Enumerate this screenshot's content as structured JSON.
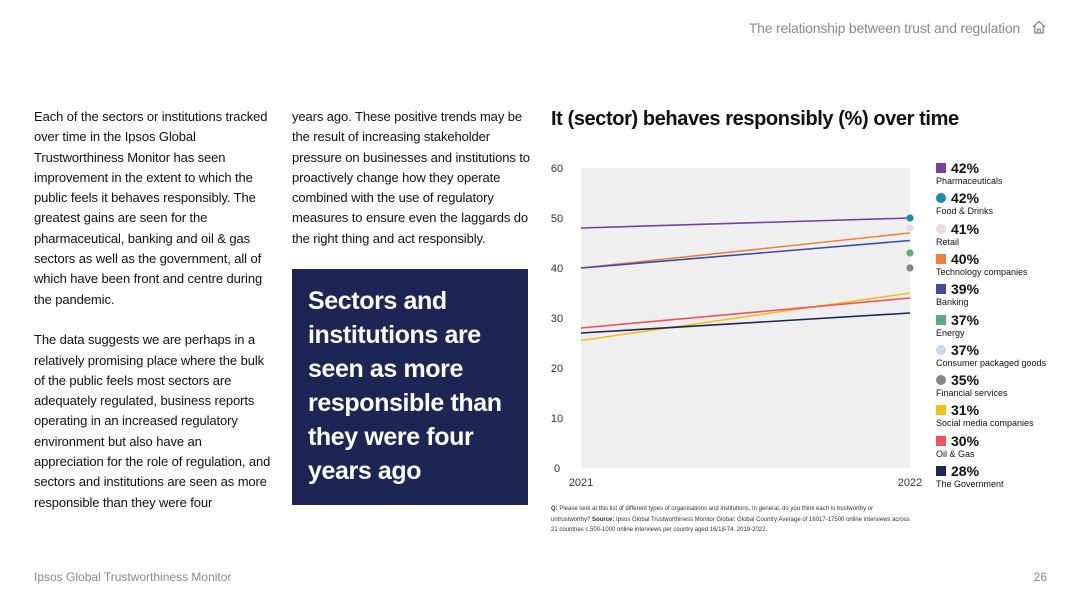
{
  "header": {
    "title": "The relationship between trust and regulation",
    "home_icon": "home-icon"
  },
  "body": {
    "col1_para1": "Each of the sectors or institutions tracked over time in the Ipsos Global Trustworthiness Monitor has seen improvement in the extent to which the public feels it behaves responsibly. The greatest gains are seen for the pharmaceutical, banking and oil & gas sectors as well as the government, all of which have been front and centre during the pandemic.",
    "col1_para2": "The data suggests we are perhaps in a relatively promising place where the bulk of the public feels most sectors are adequately regulated, business reports operating in an increased regulatory environment but also have an appreciation for the role of regulation, and sectors and institutions are seen as more responsible than they were four",
    "col2_para1": "years ago. These positive trends may be the result of increasing stakeholder pressure on businesses and institutions to proactively change how they operate combined with the use of regulatory measures to ensure even the laggards do the right thing and act responsibly."
  },
  "callout": {
    "text": "Sectors and institutions are seen as more responsible than they were four years ago"
  },
  "chart_data": {
    "type": "line",
    "title": "It (sector) behaves responsibly (%) over time",
    "xlabel": "",
    "ylabel": "",
    "x": [
      "2021",
      "2022"
    ],
    "yticks": [
      "0",
      "10",
      "20",
      "30",
      "40",
      "50",
      "60"
    ],
    "ylim": [
      0,
      60
    ],
    "grid": false,
    "legend_position": "right",
    "series": [
      {
        "name": "Pharmaceuticals",
        "label": "42%",
        "values": [
          48,
          50
        ],
        "color": "#7b3f9e",
        "marker": "square",
        "type": "line"
      },
      {
        "name": "Food & Drinks",
        "label": "42%",
        "values": [
          null,
          50
        ],
        "color": "#1a8fa3",
        "marker": "circle",
        "type": "point"
      },
      {
        "name": "Retail",
        "label": "41%",
        "values": [
          null,
          48
        ],
        "color": "#ead7ea",
        "marker": "circle",
        "type": "point"
      },
      {
        "name": "Technology companies",
        "label": "40%",
        "values": [
          40,
          47
        ],
        "color": "#f07f3c",
        "marker": "square",
        "type": "line"
      },
      {
        "name": "Banking",
        "label": "39%",
        "values": [
          40,
          45.5
        ],
        "color": "#3b4ba6",
        "marker": "square",
        "type": "line"
      },
      {
        "name": "Energy",
        "label": "37%",
        "values": [
          null,
          43
        ],
        "color": "#5aac7e",
        "marker": "square",
        "type": "point"
      },
      {
        "name": "Consumer packaged goods",
        "label": "37%",
        "values": [
          null,
          40
        ],
        "color": "#c6d7ef",
        "marker": "circle",
        "type": "point"
      },
      {
        "name": "Financial services",
        "label": "35%",
        "values": [
          null,
          40
        ],
        "color": "#888888",
        "marker": "circle",
        "type": "point"
      },
      {
        "name": "Social media companies",
        "label": "31%",
        "values": [
          25.5,
          35
        ],
        "color": "#f5bd1a",
        "marker": "square",
        "type": "line"
      },
      {
        "name": "Oil & Gas",
        "label": "30%",
        "values": [
          28,
          34
        ],
        "color": "#f0525e",
        "marker": "square",
        "type": "line"
      },
      {
        "name": "The Government",
        "label": "28%",
        "values": [
          27,
          31
        ],
        "color": "#1f2556",
        "marker": "square",
        "type": "line"
      }
    ]
  },
  "footnote": {
    "q_label": "Q:",
    "question": "Please look at this list of different types of organisations and institutions. In general, do you think each is trustworthy or untrustworthy?",
    "source_label": "Source:",
    "source": "Ipsos Global Trustworthiness Monitor Global: Global Country Average of 16017-17500 online interviews across 21 countries c.500-1000 online interviews per country aged 16/18-74. 2019-2022."
  },
  "footer": {
    "left": "Ipsos Global Trustworthiness Monitor",
    "page": "26"
  }
}
